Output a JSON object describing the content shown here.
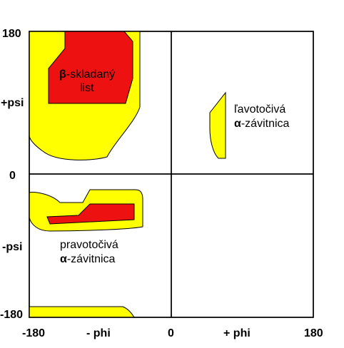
{
  "ticks": {
    "y_top": "180",
    "y_plus": "+psi",
    "y_zero": "0",
    "y_minus": "-psi",
    "y_bottom": "-180",
    "x_left": "-180",
    "x_minus": "- phi",
    "x_zero": "0",
    "x_plus": "+ phi",
    "x_right": "180"
  },
  "regions": {
    "beta_sheet": {
      "greek": "β",
      "line1_rest": "-skladaný",
      "line2": "list"
    },
    "left_helix": {
      "line1": "ľavotočivá",
      "greek": "α",
      "line2_rest": "-závitnica"
    },
    "right_helix": {
      "line1": "pravotočivá",
      "greek": "α",
      "line2_rest": "-závitnica"
    }
  },
  "colors": {
    "allowed": "#ffff00",
    "core": "#ee1111",
    "outline": "#000000"
  }
}
